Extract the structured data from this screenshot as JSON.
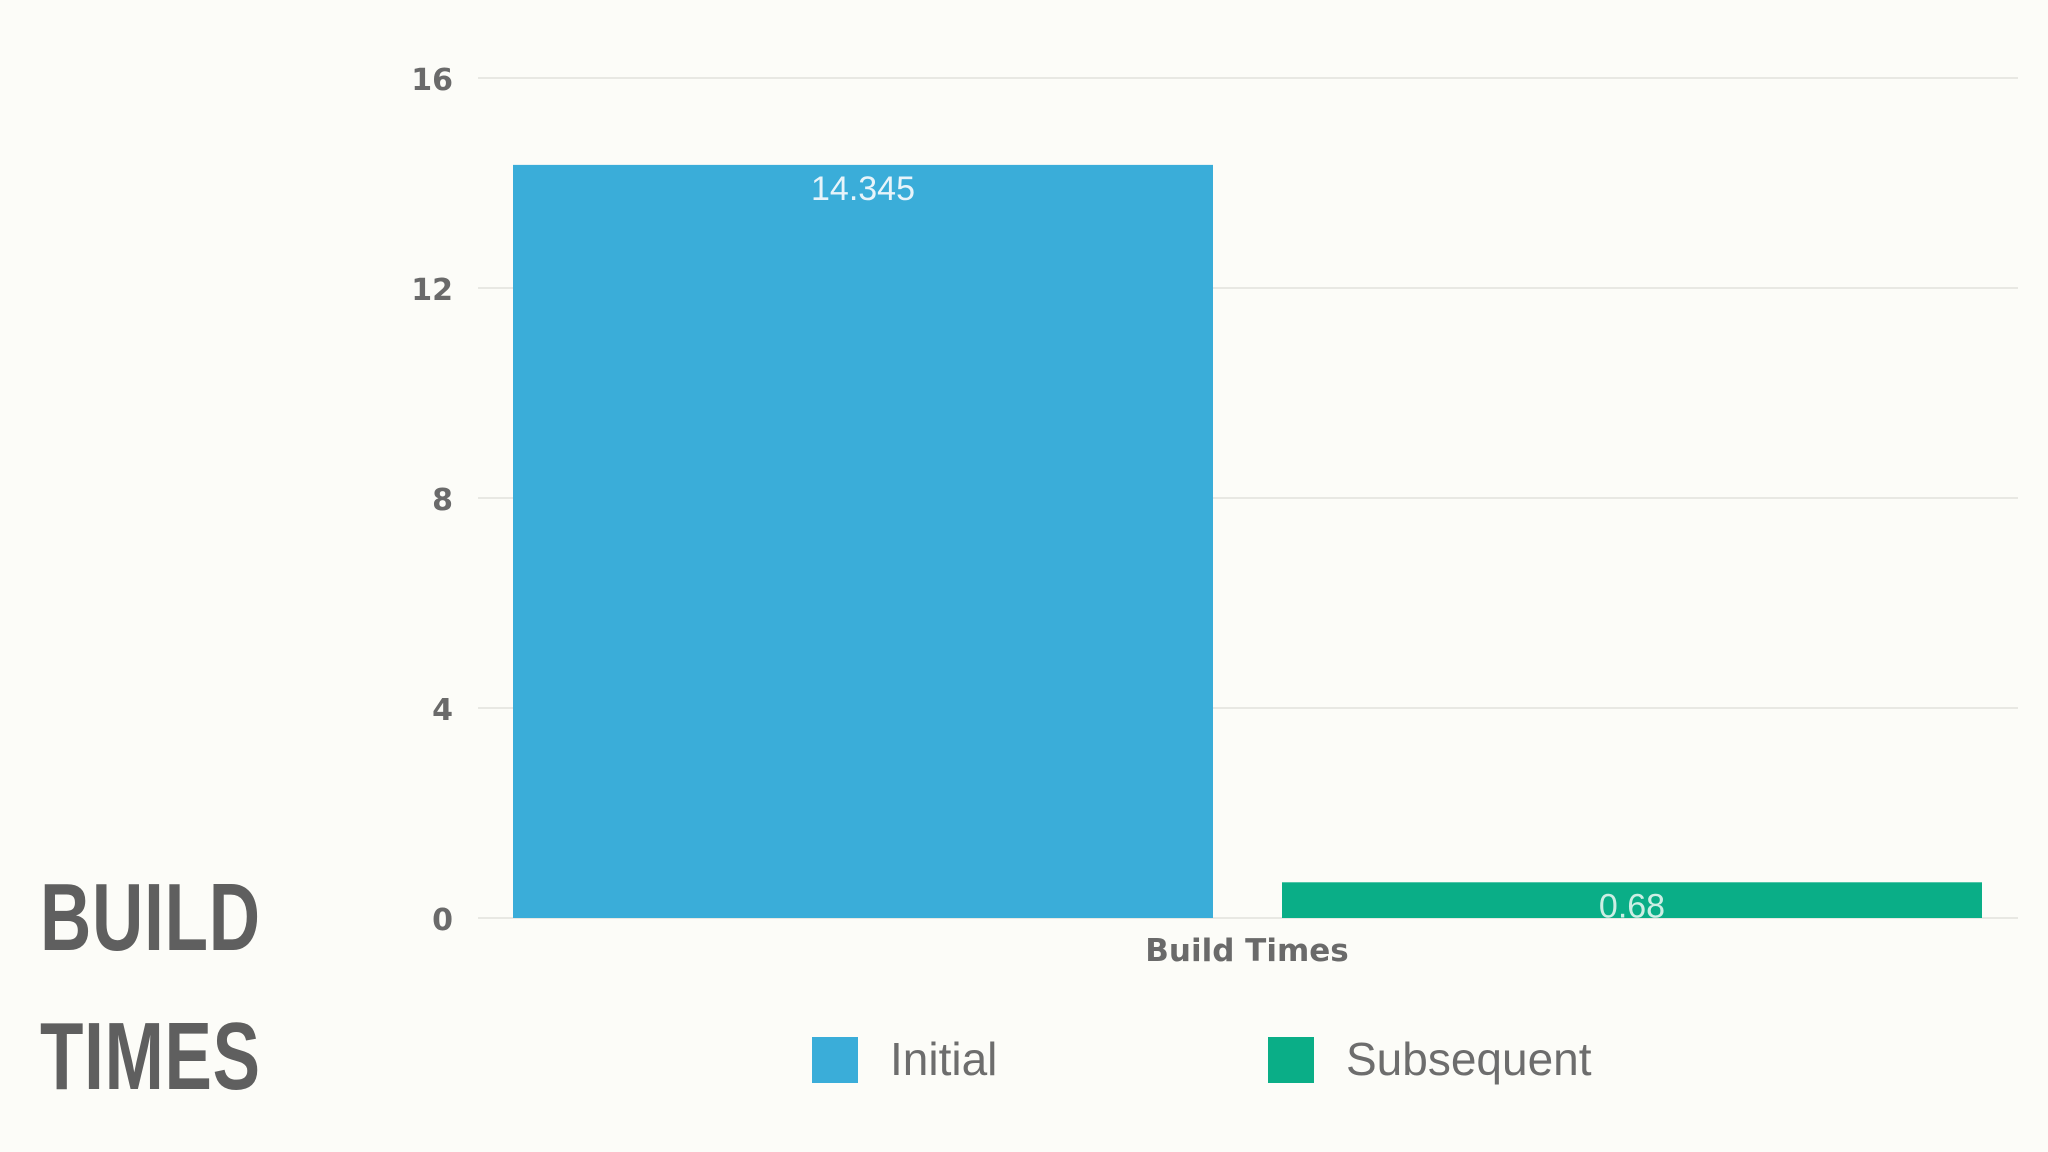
{
  "slide": {
    "title_line1": "BUILD",
    "title_line2": "TIMES"
  },
  "chart_data": {
    "type": "bar",
    "categories": [
      "Build Times"
    ],
    "xlabel": "Build Times",
    "ylabel": "",
    "ylim": [
      0,
      16
    ],
    "yticks": [
      0,
      4,
      8,
      12,
      16
    ],
    "grid": true,
    "legend_position": "bottom",
    "series": [
      {
        "name": "Initial",
        "values": [
          14.345
        ],
        "label": "14.345",
        "color": "#3aadd9"
      },
      {
        "name": "Subsequent",
        "values": [
          0.68
        ],
        "label": "0.68",
        "color": "#0aae87"
      }
    ]
  }
}
